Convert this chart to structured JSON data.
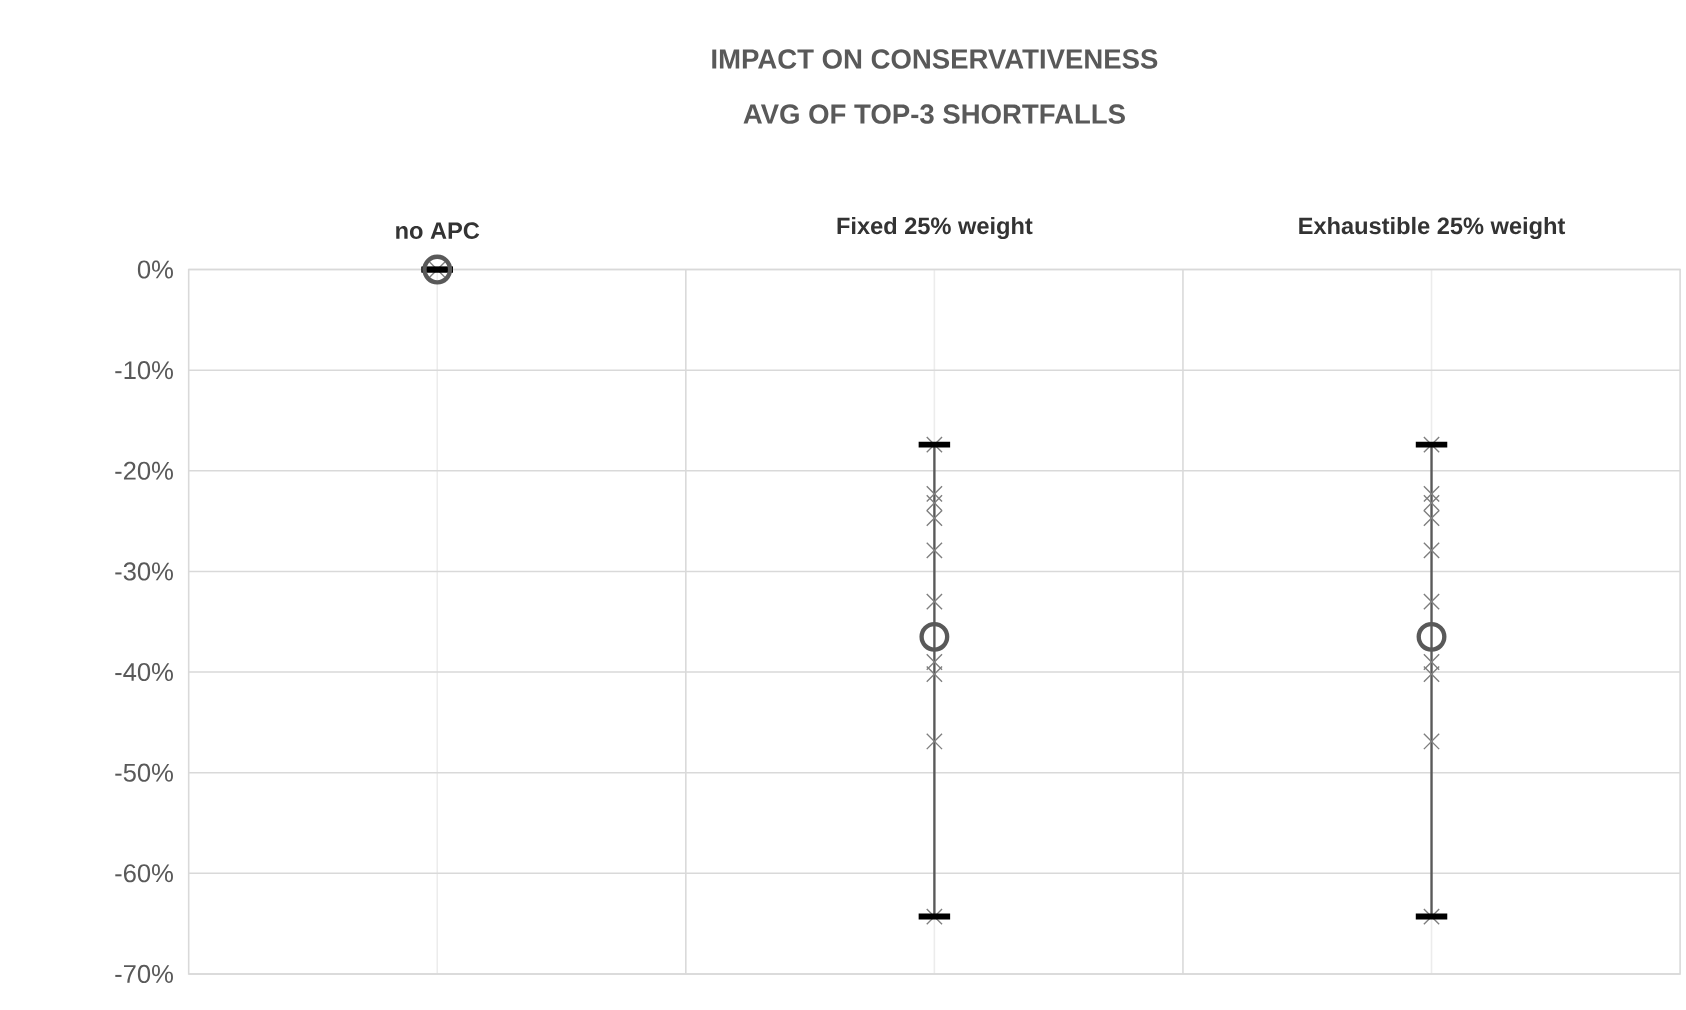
{
  "chart_data": {
    "type": "scatter",
    "title": "IMPACT ON CONSERVATIVENESS",
    "subtitle": "AVG OF TOP-3 SHORTFALLS",
    "categories": [
      "no APC",
      "Fixed 25% weight",
      "Exhaustible 25% weight"
    ],
    "series": [
      {
        "marker": "cross",
        "color": "#7f7f7f",
        "x": [
          "no APC",
          "Fixed 25% weight",
          "Fixed 25% weight",
          "Fixed 25% weight",
          "Fixed 25% weight",
          "Fixed 25% weight",
          "Fixed 25% weight",
          "Fixed 25% weight",
          "Fixed 25% weight",
          "Fixed 25% weight",
          "Fixed 25% weight",
          "Exhaustible 25% weight",
          "Exhaustible 25% weight",
          "Exhaustible 25% weight",
          "Exhaustible 25% weight",
          "Exhaustible 25% weight",
          "Exhaustible 25% weight",
          "Exhaustible 25% weight",
          "Exhaustible 25% weight",
          "Exhaustible 25% weight",
          "Exhaustible 25% weight"
        ],
        "values": [
          0,
          -17.4,
          -22.3,
          -23.2,
          -24.7,
          -27.9,
          -33.0,
          -39.0,
          -40.2,
          -46.9,
          -64.3,
          -17.4,
          -22.3,
          -23.2,
          -24.7,
          -27.9,
          -33.0,
          -39.0,
          -40.2,
          -46.9,
          -64.3
        ]
      },
      {
        "marker": "circle",
        "color": "#595959",
        "values": [
          0,
          -36.5,
          -36.5
        ],
        "errors": [
          [
            0,
            0
          ],
          [
            -64.3,
            -17.4
          ],
          [
            -64.3,
            -17.4
          ]
        ]
      }
    ],
    "ylim": [
      -70,
      0
    ],
    "yticks": [
      {
        "value": 0,
        "label": "0%"
      },
      {
        "value": -10,
        "label": "-10%"
      },
      {
        "value": -20,
        "label": "-20%"
      },
      {
        "value": -30,
        "label": "-30%"
      },
      {
        "value": -40,
        "label": "-40%"
      },
      {
        "value": -50,
        "label": "-50%"
      },
      {
        "value": -60,
        "label": "-60%"
      },
      {
        "value": -70,
        "label": "-70%"
      }
    ],
    "grid": true
  }
}
